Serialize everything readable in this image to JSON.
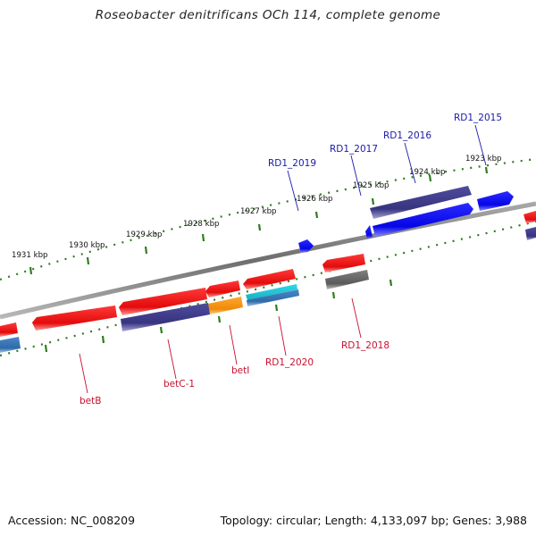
{
  "title": "Roseobacter denitrificans OCh 114, complete genome",
  "footer": {
    "accession": "Accession: NC_008209",
    "summary": "Topology: circular; Length: 4,133,097 bp; Genes: 3,988"
  },
  "colors": {
    "backbone": "#8a8a8a",
    "tick": "#2e7d1e",
    "red": "#ee1111",
    "blue": "#0a0aee",
    "navy": "#3d3a8c",
    "orange": "#f09010",
    "cyan": "#20c8d8",
    "gray": "#666666",
    "steel": "#3a78b8",
    "top_label": "#1a1aa8",
    "bottom_label": "#c8102e"
  },
  "ticks": [
    {
      "label": "1923 kbp"
    },
    {
      "label": "1924 kbp"
    },
    {
      "label": "1925 kbp"
    },
    {
      "label": "1926 kbp"
    },
    {
      "label": "1927 kbp"
    },
    {
      "label": "1928 kbp"
    },
    {
      "label": "1929 kbp"
    },
    {
      "label": "1930 kbp"
    },
    {
      "label": "1931 kbp"
    }
  ],
  "top_genes": [
    {
      "label": "RD1_2015"
    },
    {
      "label": "RD1_2016"
    },
    {
      "label": "RD1_2017"
    },
    {
      "label": "RD1_2019"
    }
  ],
  "bottom_genes": [
    {
      "label": "betB"
    },
    {
      "label": "betC-1"
    },
    {
      "label": "betI"
    },
    {
      "label": "RD1_2020"
    },
    {
      "label": "RD1_2018"
    }
  ]
}
